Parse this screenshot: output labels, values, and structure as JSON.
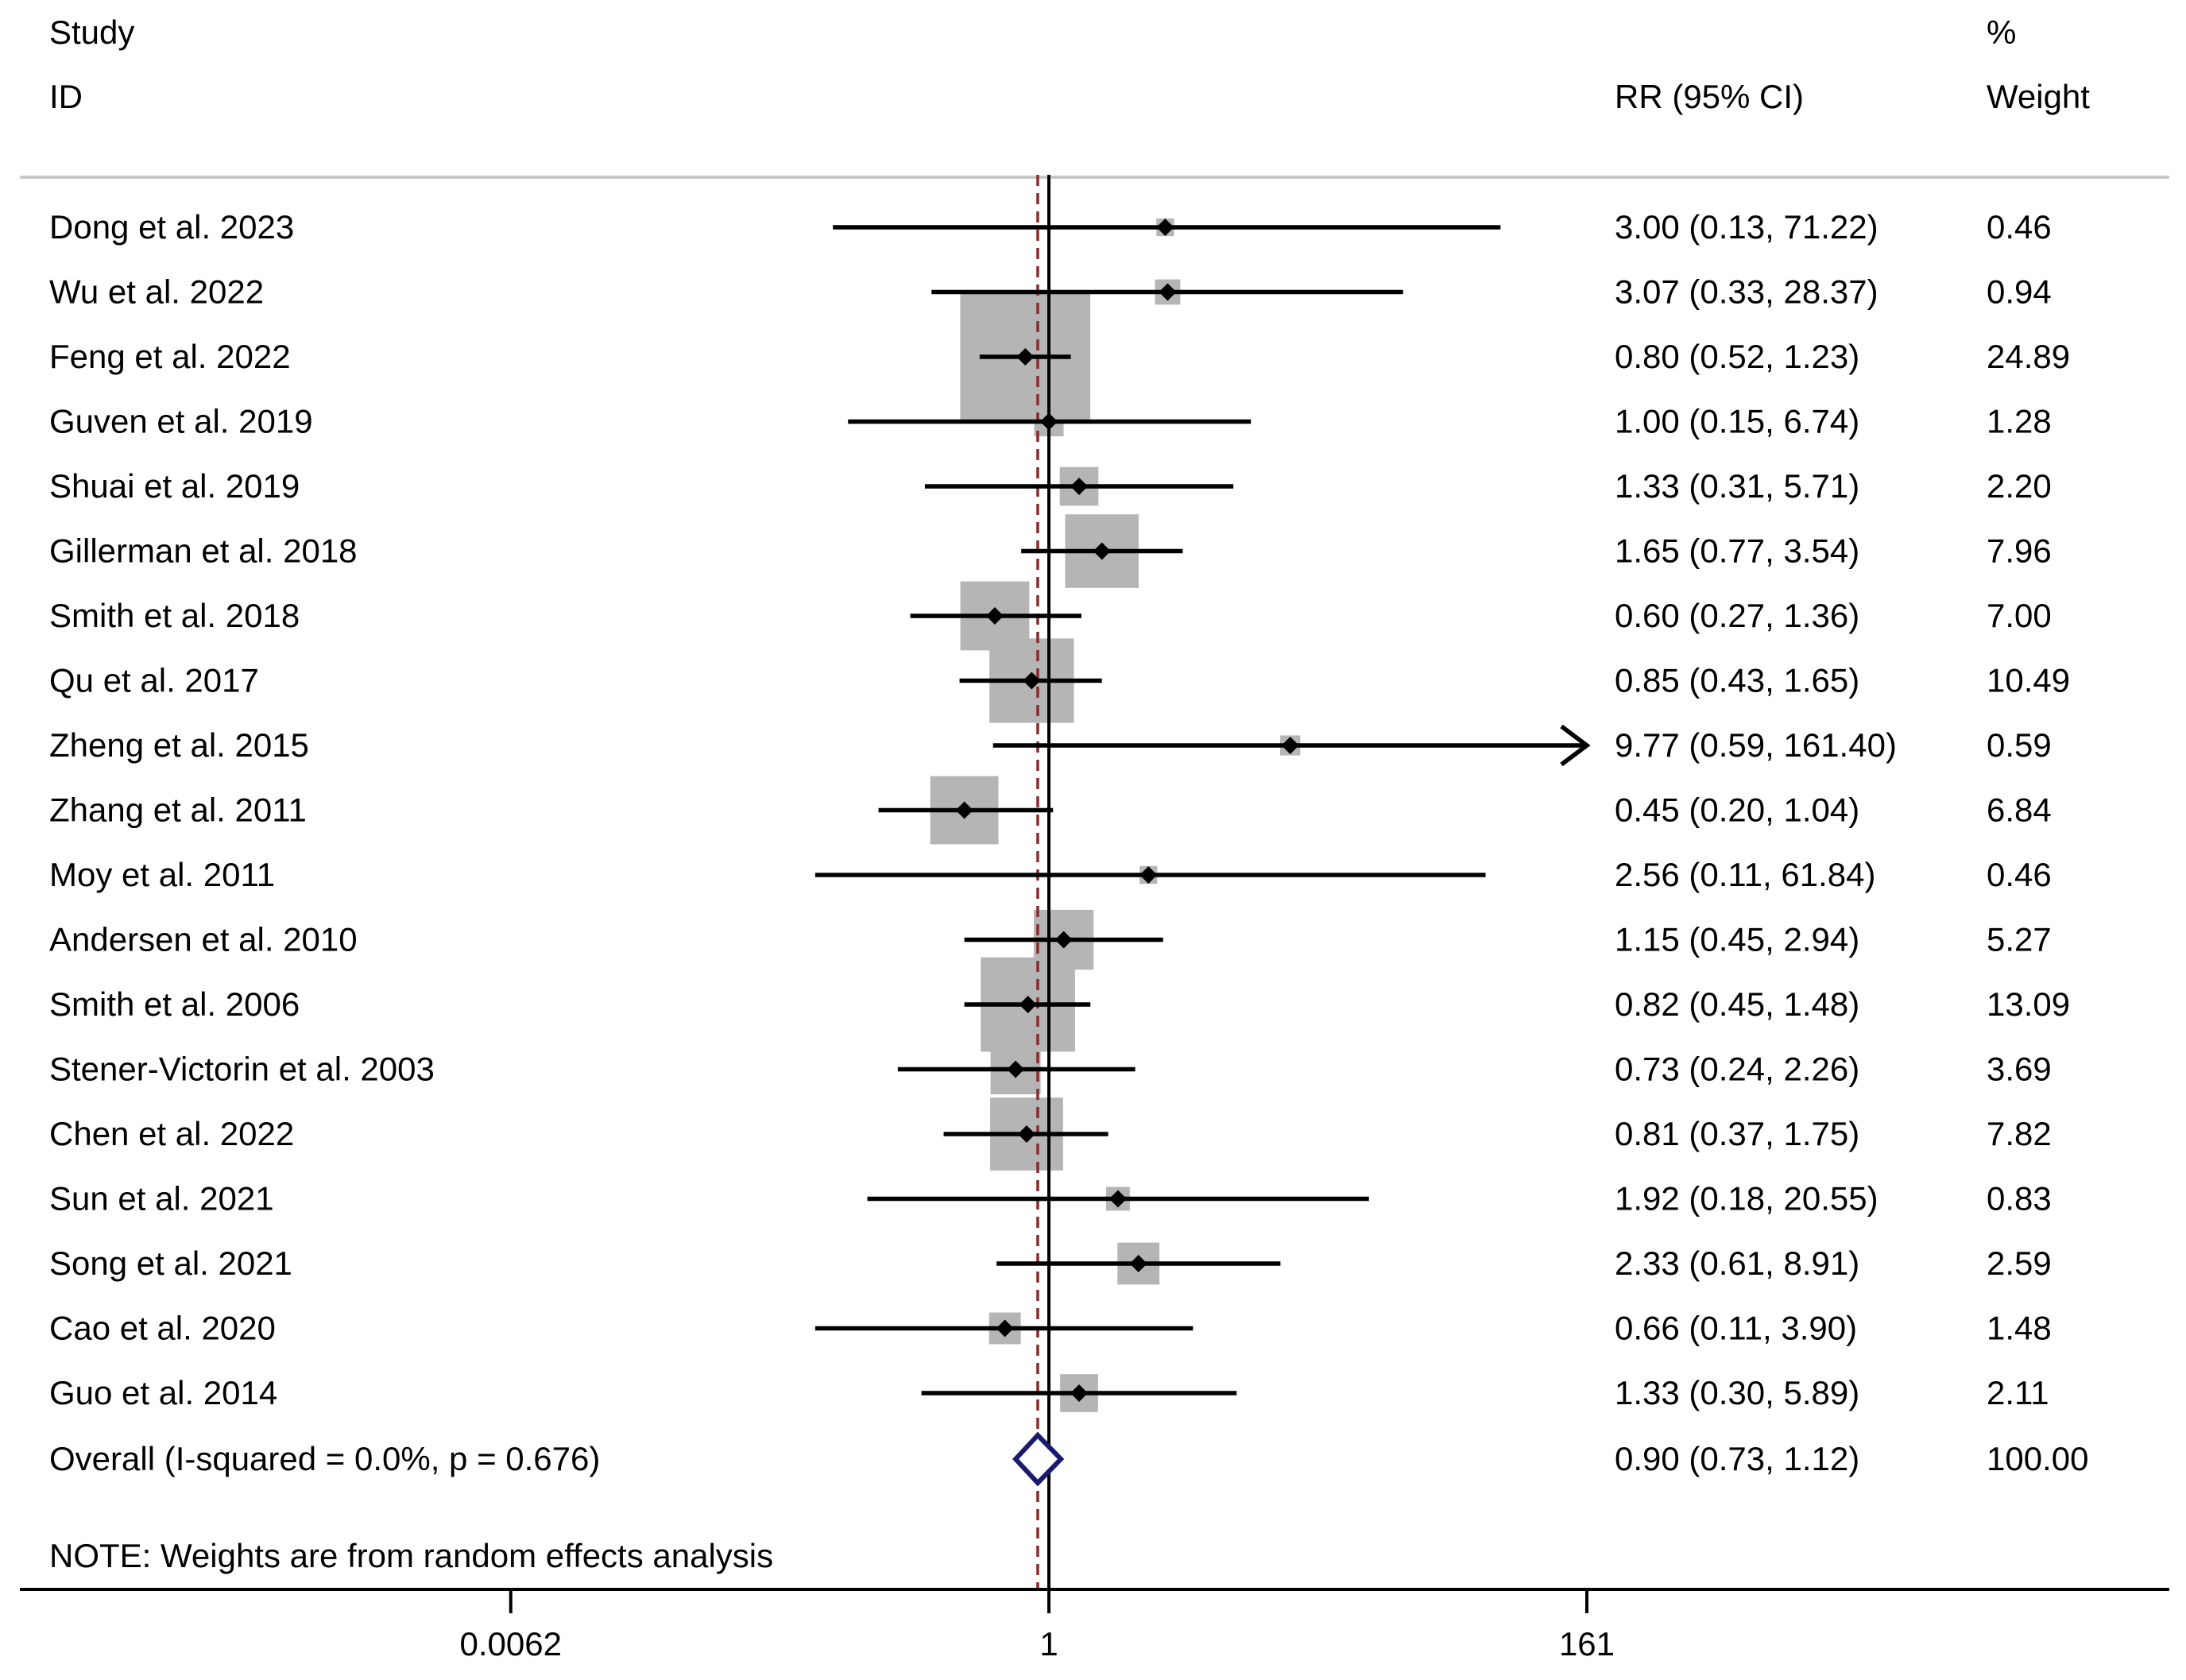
{
  "chart_data": {
    "type": "forest",
    "headers": {
      "study_line1": "Study",
      "study_line2": "ID",
      "effect": "RR (95% CI)",
      "weight_line1": "%",
      "weight_line2": "Weight"
    },
    "studies": [
      {
        "id": "Dong et al. 2023",
        "rr": 3.0,
        "lo": 0.13,
        "hi": 71.22,
        "ci_text": "3.00 (0.13, 71.22)",
        "weight": 0.46,
        "weight_text": "0.46"
      },
      {
        "id": "Wu et al. 2022",
        "rr": 3.07,
        "lo": 0.33,
        "hi": 28.37,
        "ci_text": "3.07 (0.33, 28.37)",
        "weight": 0.94,
        "weight_text": "0.94"
      },
      {
        "id": "Feng et al. 2022",
        "rr": 0.8,
        "lo": 0.52,
        "hi": 1.23,
        "ci_text": "0.80 (0.52, 1.23)",
        "weight": 24.89,
        "weight_text": "24.89"
      },
      {
        "id": "Guven et al. 2019",
        "rr": 1.0,
        "lo": 0.15,
        "hi": 6.74,
        "ci_text": "1.00 (0.15, 6.74)",
        "weight": 1.28,
        "weight_text": "1.28"
      },
      {
        "id": "Shuai et al. 2019",
        "rr": 1.33,
        "lo": 0.31,
        "hi": 5.71,
        "ci_text": "1.33 (0.31, 5.71)",
        "weight": 2.2,
        "weight_text": "2.20"
      },
      {
        "id": "Gillerman et al. 2018",
        "rr": 1.65,
        "lo": 0.77,
        "hi": 3.54,
        "ci_text": "1.65 (0.77, 3.54)",
        "weight": 7.96,
        "weight_text": "7.96"
      },
      {
        "id": "Smith et al. 2018",
        "rr": 0.6,
        "lo": 0.27,
        "hi": 1.36,
        "ci_text": "0.60 (0.27, 1.36)",
        "weight": 7.0,
        "weight_text": "7.00"
      },
      {
        "id": "Qu et al. 2017",
        "rr": 0.85,
        "lo": 0.43,
        "hi": 1.65,
        "ci_text": "0.85 (0.43, 1.65)",
        "weight": 10.49,
        "weight_text": "10.49"
      },
      {
        "id": "Zheng et al. 2015",
        "rr": 9.77,
        "lo": 0.59,
        "hi": 161.4,
        "ci_text": "9.77 (0.59, 161.40)",
        "weight": 0.59,
        "weight_text": "0.59"
      },
      {
        "id": "Zhang et al. 2011",
        "rr": 0.45,
        "lo": 0.2,
        "hi": 1.04,
        "ci_text": "0.45 (0.20, 1.04)",
        "weight": 6.84,
        "weight_text": "6.84"
      },
      {
        "id": "Moy et al. 2011",
        "rr": 2.56,
        "lo": 0.11,
        "hi": 61.84,
        "ci_text": "2.56 (0.11, 61.84)",
        "weight": 0.46,
        "weight_text": "0.46"
      },
      {
        "id": "Andersen et al. 2010",
        "rr": 1.15,
        "lo": 0.45,
        "hi": 2.94,
        "ci_text": "1.15 (0.45, 2.94)",
        "weight": 5.27,
        "weight_text": "5.27"
      },
      {
        "id": "Smith et al. 2006",
        "rr": 0.82,
        "lo": 0.45,
        "hi": 1.48,
        "ci_text": "0.82 (0.45, 1.48)",
        "weight": 13.09,
        "weight_text": "13.09"
      },
      {
        "id": "Stener-Victorin et al. 2003",
        "rr": 0.73,
        "lo": 0.24,
        "hi": 2.26,
        "ci_text": "0.73 (0.24, 2.26)",
        "weight": 3.69,
        "weight_text": "3.69"
      },
      {
        "id": "Chen et al. 2022",
        "rr": 0.81,
        "lo": 0.37,
        "hi": 1.75,
        "ci_text": "0.81 (0.37, 1.75)",
        "weight": 7.82,
        "weight_text": "7.82"
      },
      {
        "id": "Sun et al. 2021",
        "rr": 1.92,
        "lo": 0.18,
        "hi": 20.55,
        "ci_text": "1.92 (0.18, 20.55)",
        "weight": 0.83,
        "weight_text": "0.83"
      },
      {
        "id": "Song et al. 2021",
        "rr": 2.33,
        "lo": 0.61,
        "hi": 8.91,
        "ci_text": "2.33 (0.61, 8.91)",
        "weight": 2.59,
        "weight_text": "2.59"
      },
      {
        "id": "Cao et al. 2020",
        "rr": 0.66,
        "lo": 0.11,
        "hi": 3.9,
        "ci_text": "0.66 (0.11, 3.90)",
        "weight": 1.48,
        "weight_text": "1.48"
      },
      {
        "id": "Guo et al. 2014",
        "rr": 1.33,
        "lo": 0.3,
        "hi": 5.89,
        "ci_text": "1.33 (0.30, 5.89)",
        "weight": 2.11,
        "weight_text": "2.11"
      }
    ],
    "overall": {
      "label": "Overall  (I-squared = 0.0%, p = 0.676)",
      "rr": 0.9,
      "lo": 0.73,
      "hi": 1.12,
      "ci_text": "0.90 (0.73, 1.12)",
      "weight_text": "100.00"
    },
    "note": "NOTE: Weights are from random effects analysis",
    "x_axis": {
      "scale": "log",
      "range": [
        0.0062,
        161
      ],
      "ticks": [
        {
          "value": 0.0062,
          "label": "0.0062"
        },
        {
          "value": 1,
          "label": "1"
        },
        {
          "value": 161,
          "label": "161"
        }
      ]
    },
    "null_line": 1,
    "colors": {
      "box": "#b5b5b5",
      "lines": "#000000",
      "overall_diamond": "#1a1a6e",
      "overall_dashed_line": "#8b2a2a",
      "separator": "#c8c8c8"
    }
  }
}
